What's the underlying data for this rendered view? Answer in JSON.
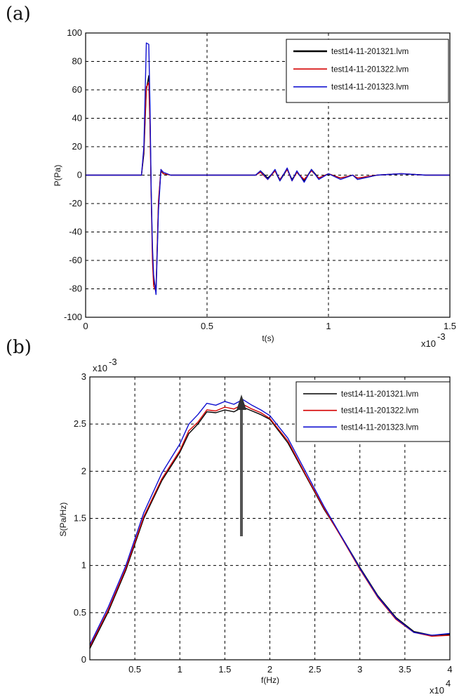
{
  "chart_data": [
    {
      "panel": "(a)",
      "type": "line",
      "xlabel": "t(s)",
      "ylabel": "P(Pa)",
      "xlim": [
        0,
        0.0015
      ],
      "ylim": [
        -100,
        100
      ],
      "x_exponent": "x10^-3",
      "x_ticks": [
        "0",
        "0.5",
        "1",
        "1.5"
      ],
      "y_ticks": [
        "100",
        "80",
        "60",
        "40",
        "20",
        "0",
        "-20",
        "-40",
        "-60",
        "-80",
        "-100"
      ],
      "x_multiplier_text": "x10",
      "x_multiplier_exp": "-3",
      "grid": true,
      "legend_position": "top-right",
      "series": [
        {
          "name": "test14-11-201321.lvm",
          "color": "#000000",
          "x": [
            0,
            0.00023,
            0.00024,
            0.00025,
            0.00026,
            0.000265,
            0.00027,
            0.000275,
            0.00028,
            0.00029,
            0.0003,
            0.00031,
            0.00032,
            0.00035,
            0.0005,
            0.0007,
            0.00072,
            0.00075,
            0.00078,
            0.0008,
            0.00083,
            0.00085,
            0.00087,
            0.0009,
            0.00093,
            0.00096,
            0.001,
            0.00105,
            0.0011,
            0.00112,
            0.0012,
            0.0013,
            0.0014,
            0.0015
          ],
          "y": [
            0,
            0,
            15,
            60,
            70,
            40,
            -10,
            -55,
            -75,
            -80,
            -20,
            3,
            1,
            0,
            0,
            0,
            3,
            -2,
            3,
            -4,
            4,
            -3,
            2,
            -4,
            4,
            -2,
            1,
            -2,
            0,
            -3,
            0,
            1,
            0,
            0
          ]
        },
        {
          "name": "test14-11-201322.lvm",
          "color": "#d40000",
          "x": [
            0,
            0.00023,
            0.00024,
            0.00025,
            0.00026,
            0.000265,
            0.00027,
            0.000275,
            0.00028,
            0.00029,
            0.0003,
            0.00031,
            0.00032,
            0.00035,
            0.0005,
            0.0007,
            0.00072,
            0.00075,
            0.00078,
            0.0008,
            0.00083,
            0.00085,
            0.00087,
            0.0009,
            0.00093,
            0.00096,
            0.001,
            0.00105,
            0.0011,
            0.00112,
            0.0012,
            0.0013,
            0.0014,
            0.0015
          ],
          "y": [
            0,
            0,
            18,
            62,
            65,
            35,
            -15,
            -60,
            -78,
            -82,
            -18,
            4,
            1,
            0,
            0,
            0,
            2,
            -3,
            3,
            -3,
            4,
            -4,
            2,
            -3,
            3,
            -2,
            1,
            -2,
            0,
            -2,
            0,
            1,
            0,
            0
          ]
        },
        {
          "name": "test14-11-201323.lvm",
          "color": "#1010d0",
          "x": [
            0,
            0.00023,
            0.00024,
            0.00025,
            0.00026,
            0.000265,
            0.00027,
            0.000275,
            0.00028,
            0.00029,
            0.0003,
            0.00031,
            0.00032,
            0.00035,
            0.0005,
            0.0007,
            0.00072,
            0.00075,
            0.00078,
            0.0008,
            0.00083,
            0.00085,
            0.00087,
            0.0009,
            0.00093,
            0.00096,
            0.001,
            0.00105,
            0.0011,
            0.00112,
            0.0012,
            0.0013,
            0.0014,
            0.0015
          ],
          "y": [
            0,
            0,
            20,
            93,
            92,
            50,
            -10,
            -50,
            -70,
            -84,
            -25,
            4,
            2,
            0,
            0,
            0,
            3,
            -3,
            4,
            -4,
            5,
            -4,
            3,
            -5,
            4,
            -3,
            1,
            -3,
            0,
            -3,
            0,
            1,
            0,
            0
          ]
        }
      ]
    },
    {
      "panel": "(b)",
      "type": "line",
      "xlabel": "f(Hz)",
      "ylabel": "S(Pa/Hz)",
      "xlim": [
        0,
        40000
      ],
      "ylim": [
        0,
        0.003
      ],
      "x_ticks": [
        "0.5",
        "1",
        "1.5",
        "2",
        "2.5",
        "3",
        "3.5",
        "4"
      ],
      "y_ticks": [
        "3",
        "2.5",
        "2",
        "1.5",
        "1",
        "0.5",
        "0"
      ],
      "x_multiplier_text": "x10",
      "x_multiplier_exp": "4",
      "y_multiplier_text": "x10",
      "y_multiplier_exp": "-3",
      "grid": true,
      "legend_position": "top-right",
      "annotation": "arrow pointing to spectral peak near f = 16700 Hz",
      "series": [
        {
          "name": "test14-11-201321.lvm",
          "color": "#000000",
          "x": [
            0,
            2000,
            4000,
            6000,
            8000,
            10000,
            11000,
            12000,
            13000,
            14000,
            15000,
            16000,
            17000,
            18000,
            19000,
            20000,
            22000,
            24000,
            26000,
            28000,
            30000,
            32000,
            34000,
            36000,
            38000,
            40000
          ],
          "y": [
            0.00012,
            0.0005,
            0.00095,
            0.0015,
            0.0019,
            0.0022,
            0.0024,
            0.0025,
            0.00263,
            0.00262,
            0.00265,
            0.00263,
            0.00268,
            0.00264,
            0.0026,
            0.00255,
            0.0023,
            0.00195,
            0.0016,
            0.0013,
            0.00098,
            0.00068,
            0.00045,
            0.0003,
            0.00026,
            0.00027
          ]
        },
        {
          "name": "test14-11-201322.lvm",
          "color": "#d40000",
          "x": [
            0,
            2000,
            4000,
            6000,
            8000,
            10000,
            11000,
            12000,
            13000,
            14000,
            15000,
            16000,
            17000,
            18000,
            19000,
            20000,
            22000,
            24000,
            26000,
            28000,
            30000,
            32000,
            34000,
            36000,
            38000,
            40000
          ],
          "y": [
            0.00014,
            0.00052,
            0.00097,
            0.00152,
            0.00192,
            0.00222,
            0.00243,
            0.00252,
            0.00265,
            0.00264,
            0.00268,
            0.00266,
            0.00271,
            0.00266,
            0.00262,
            0.00256,
            0.00232,
            0.00196,
            0.00161,
            0.00129,
            0.00096,
            0.00066,
            0.00043,
            0.00029,
            0.00025,
            0.00026
          ]
        },
        {
          "name": "test14-11-201323.lvm",
          "color": "#1010d0",
          "x": [
            0,
            2000,
            4000,
            6000,
            8000,
            10000,
            11000,
            12000,
            13000,
            14000,
            15000,
            16000,
            17000,
            18000,
            19000,
            20000,
            22000,
            24000,
            26000,
            28000,
            30000,
            32000,
            34000,
            36000,
            38000,
            40000
          ],
          "y": [
            0.00016,
            0.00055,
            0.001,
            0.00156,
            0.00198,
            0.00229,
            0.0025,
            0.0026,
            0.00272,
            0.0027,
            0.00274,
            0.00271,
            0.00276,
            0.0027,
            0.00265,
            0.00259,
            0.00235,
            0.00199,
            0.00163,
            0.0013,
            0.00097,
            0.00067,
            0.00044,
            0.00029,
            0.00026,
            0.00028
          ]
        }
      ]
    }
  ]
}
